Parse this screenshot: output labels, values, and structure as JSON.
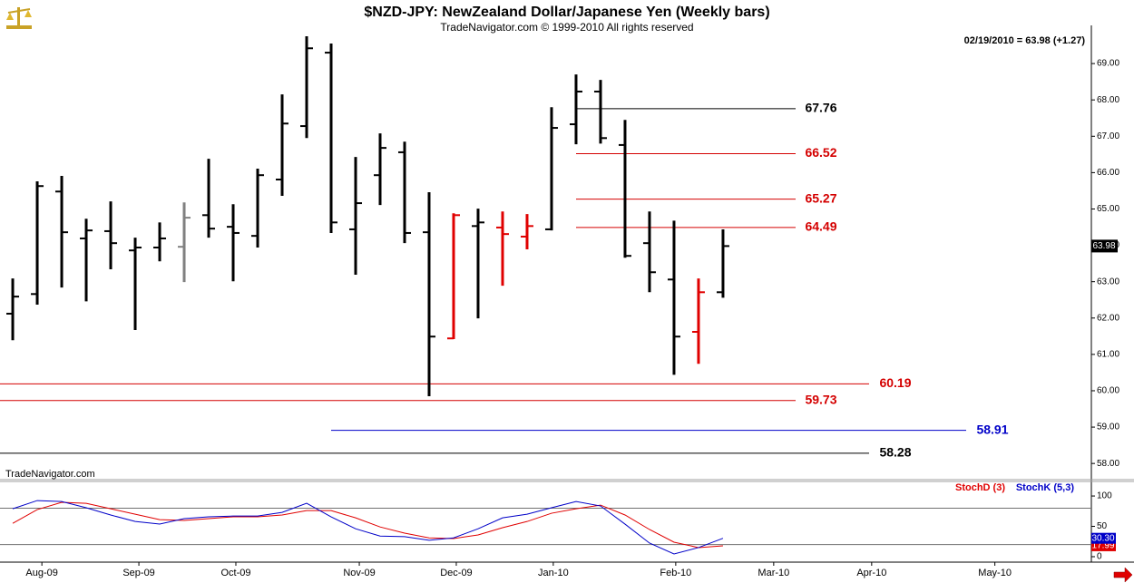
{
  "chart_data": [
    {
      "type": "ohlc",
      "title": "$NZD-JPY:  NewZealand Dollar/Japanese Yen  (Weekly bars)",
      "subtitle": "TradeNavigator.com © 1999-2010 All rights reserved",
      "annotation": "02/19/2010 = 63.98 (+1.27)",
      "watermark": "TradeNavigator.com",
      "x": [
        0,
        1,
        2,
        3,
        4,
        5,
        6,
        7,
        8,
        9,
        10,
        11,
        12,
        13,
        14,
        15,
        16,
        17,
        18,
        19,
        20,
        21,
        22,
        23,
        24,
        25,
        26,
        27,
        28,
        29
      ],
      "open": [
        62.12,
        62.66,
        65.48,
        64.19,
        64.39,
        63.86,
        63.94,
        63.96,
        64.83,
        64.51,
        64.26,
        65.81,
        67.28,
        69.3,
        64.44,
        65.93,
        66.56,
        64.36,
        61.44,
        64.53,
        64.49,
        64.24,
        64.44,
        67.33,
        68.23,
        66.76,
        64.06,
        63.06,
        61.62,
        62.71
      ],
      "high": [
        63.09,
        65.76,
        65.91,
        64.73,
        65.21,
        64.21,
        64.63,
        65.18,
        66.38,
        65.13,
        66.11,
        68.15,
        69.75,
        69.55,
        66.43,
        67.08,
        66.85,
        65.46,
        64.88,
        65.01,
        64.93,
        64.86,
        67.8,
        68.7,
        68.55,
        67.45,
        64.93,
        64.68,
        63.09,
        64.44
      ],
      "low": [
        61.39,
        62.37,
        62.84,
        62.46,
        63.34,
        61.67,
        63.56,
        62.99,
        64.21,
        63.01,
        63.94,
        65.36,
        66.95,
        64.34,
        63.19,
        65.11,
        64.06,
        59.85,
        61.42,
        61.99,
        62.89,
        63.89,
        64.41,
        66.78,
        66.8,
        63.66,
        62.71,
        60.44,
        60.74,
        62.56
      ],
      "close": [
        62.59,
        65.63,
        64.36,
        64.41,
        64.06,
        63.94,
        64.19,
        64.76,
        64.46,
        64.34,
        65.93,
        67.35,
        69.42,
        64.63,
        65.16,
        66.68,
        64.34,
        61.49,
        64.83,
        64.63,
        64.31,
        64.53,
        67.23,
        68.23,
        66.95,
        63.71,
        63.26,
        61.49,
        62.71,
        63.98
      ],
      "colors": [
        "#000000",
        "#000000",
        "#000000",
        "#000000",
        "#000000",
        "#000000",
        "#000000",
        "#808080",
        "#000000",
        "#000000",
        "#000000",
        "#000000",
        "#000000",
        "#000000",
        "#000000",
        "#000000",
        "#000000",
        "#000000",
        "#e00000",
        "#000000",
        "#e00000",
        "#e00000",
        "#000000",
        "#000000",
        "#000000",
        "#000000",
        "#000000",
        "#000000",
        "#e00000",
        "#000000"
      ],
      "levels": [
        {
          "value": 67.76,
          "color": "#000000"
        },
        {
          "value": 66.52,
          "color": "#d40000"
        },
        {
          "value": 65.27,
          "color": "#d40000"
        },
        {
          "value": 64.49,
          "color": "#d40000"
        },
        {
          "value": 60.19,
          "color": "#d40000"
        },
        {
          "value": 59.73,
          "color": "#d40000"
        },
        {
          "value": 58.91,
          "color": "#0000c8"
        },
        {
          "value": 58.28,
          "color": "#000000"
        }
      ],
      "xlim": [
        -0.52,
        44.04
      ],
      "xticks": [
        {
          "value": 1.19,
          "label": "Aug-09"
        },
        {
          "value": 5.15,
          "label": "Sep-09"
        },
        {
          "value": 9.11,
          "label": "Oct-09"
        },
        {
          "value": 14.15,
          "label": "Nov-09"
        },
        {
          "value": 18.11,
          "label": "Dec-09"
        },
        {
          "value": 22.07,
          "label": "Jan-10"
        },
        {
          "value": 27.07,
          "label": "Feb-10"
        },
        {
          "value": 31.07,
          "label": "Mar-10"
        },
        {
          "value": 35.07,
          "label": "Apr-10"
        },
        {
          "value": 40.1,
          "label": "May-10"
        }
      ],
      "ylim": [
        57.58,
        70.05
      ],
      "yticks": [
        {
          "value": 58,
          "label": "58.00"
        },
        {
          "value": 59,
          "label": "59.00"
        },
        {
          "value": 60,
          "label": "60.00"
        },
        {
          "value": 61,
          "label": "61.00"
        },
        {
          "value": 62,
          "label": "62.00"
        },
        {
          "value": 63,
          "label": "63.00"
        },
        {
          "value": 64,
          "label": "64.00"
        },
        {
          "value": 65,
          "label": "65.00"
        },
        {
          "value": 66,
          "label": "66.00"
        },
        {
          "value": 67,
          "label": "67.00"
        },
        {
          "value": 68,
          "label": "68.00"
        },
        {
          "value": 69,
          "label": "69.00"
        }
      ]
    },
    {
      "type": "line",
      "x": [
        0,
        1,
        2,
        3,
        4,
        5,
        6,
        7,
        8,
        9,
        10,
        11,
        12,
        13,
        14,
        15,
        16,
        17,
        18,
        19,
        20,
        21,
        22,
        23,
        24,
        25,
        26,
        27,
        28,
        29
      ],
      "series": [
        {
          "name": "StochD (3)",
          "color": "#e00000",
          "values": [
            55,
            77.6,
            89.6,
            88,
            79,
            70,
            61,
            59.7,
            62.7,
            65.7,
            65.7,
            68.7,
            76,
            76,
            64,
            49,
            38.8,
            31,
            29.9,
            35.8,
            47.8,
            58,
            71.6,
            79,
            85,
            68.7,
            44.8,
            23.9,
            15,
            17.99
          ],
          "value_labels": [
            null,
            null,
            null,
            null,
            null,
            null,
            null,
            null,
            null,
            null,
            null,
            null,
            null,
            null,
            null,
            null,
            null,
            null,
            null,
            null,
            null,
            null,
            null,
            null,
            null,
            null,
            null,
            null,
            null,
            "17.99"
          ]
        },
        {
          "name": "StochK (5,3)",
          "color": "#0000c8",
          "values": [
            79,
            92.5,
            91,
            80.6,
            68.7,
            58,
            53.7,
            62.7,
            65.7,
            67,
            67,
            73,
            88,
            65.7,
            46,
            34,
            33,
            27,
            31,
            46,
            64,
            70,
            80.6,
            91,
            83.6,
            53.7,
            22.4,
            4.5,
            15,
            30.3
          ],
          "value_labels": [
            null,
            null,
            null,
            null,
            null,
            null,
            null,
            null,
            null,
            null,
            null,
            null,
            null,
            null,
            null,
            null,
            null,
            null,
            null,
            null,
            null,
            null,
            null,
            null,
            null,
            null,
            null,
            null,
            null,
            "30.30"
          ]
        }
      ],
      "levels": [
        80,
        20
      ],
      "ylim": [
        -9,
        124
      ],
      "yticks": [
        0,
        50,
        100
      ]
    }
  ]
}
